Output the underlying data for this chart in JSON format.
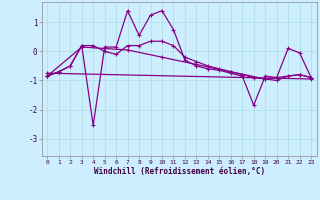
{
  "xlabel": "Windchill (Refroidissement éolien,°C)",
  "background_color": "#cceeff",
  "line_color": "#880088",
  "xlim": [
    -0.5,
    23.5
  ],
  "ylim": [
    -3.6,
    1.7
  ],
  "xticks": [
    0,
    1,
    2,
    3,
    4,
    5,
    6,
    7,
    8,
    9,
    10,
    11,
    12,
    13,
    14,
    15,
    16,
    17,
    18,
    19,
    20,
    21,
    22,
    23
  ],
  "yticks": [
    -3,
    -2,
    -1,
    0,
    1
  ],
  "grid_color": "#aadddd",
  "curve1_x": [
    0,
    1,
    2,
    3,
    4,
    5,
    6,
    7,
    8,
    9,
    10,
    11,
    12,
    13,
    14,
    15,
    16,
    17,
    18,
    19,
    20,
    21,
    22,
    23
  ],
  "curve1_y": [
    -0.85,
    -0.7,
    -0.5,
    0.2,
    -2.55,
    0.15,
    0.15,
    1.4,
    0.55,
    1.25,
    1.4,
    0.75,
    -0.3,
    -0.5,
    -0.6,
    -0.65,
    -0.75,
    -0.85,
    -1.85,
    -0.85,
    -0.9,
    0.1,
    -0.05,
    -0.9
  ],
  "curve2_x": [
    0,
    1,
    2,
    3,
    4,
    5,
    6,
    7,
    8,
    9,
    10,
    11,
    12,
    13,
    14,
    15,
    16,
    17,
    18,
    19,
    20,
    21,
    22,
    23
  ],
  "curve2_y": [
    -0.85,
    -0.7,
    -0.5,
    0.2,
    0.2,
    0.0,
    -0.1,
    0.2,
    0.2,
    0.35,
    0.35,
    0.2,
    -0.2,
    -0.35,
    -0.5,
    -0.6,
    -0.7,
    -0.8,
    -0.9,
    -0.95,
    -1.0,
    -0.85,
    -0.8,
    -0.9
  ],
  "curve3_x": [
    0,
    3,
    7,
    10,
    13,
    16,
    19,
    22,
    23
  ],
  "curve3_y": [
    -0.85,
    0.15,
    0.05,
    -0.2,
    -0.45,
    -0.7,
    -0.95,
    -0.8,
    -0.9
  ],
  "curve4_x": [
    0,
    23
  ],
  "curve4_y": [
    -0.75,
    -0.95
  ]
}
